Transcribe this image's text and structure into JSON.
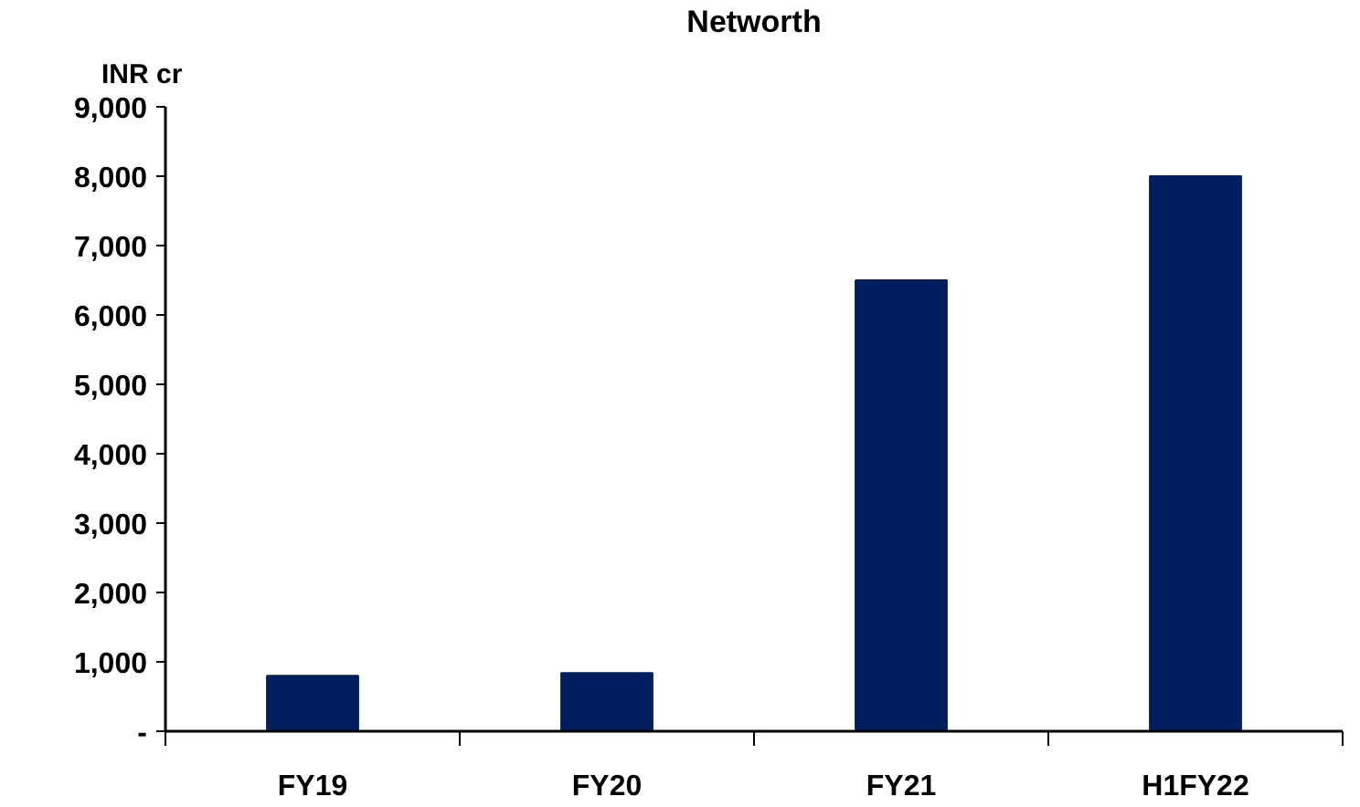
{
  "chart_data": {
    "type": "bar",
    "title": "Networth",
    "ylabel": "INR cr",
    "categories": [
      "FY19",
      "FY20",
      "FY21",
      "H1FY22"
    ],
    "values": [
      800,
      840,
      6500,
      8000
    ],
    "color": "#001f5f",
    "ylim": [
      0,
      9000
    ],
    "yticks": [
      {
        "value": 0,
        "label": "-"
      },
      {
        "value": 1000,
        "label": "1,000"
      },
      {
        "value": 2000,
        "label": "2,000"
      },
      {
        "value": 3000,
        "label": "3,000"
      },
      {
        "value": 4000,
        "label": "4,000"
      },
      {
        "value": 5000,
        "label": "5,000"
      },
      {
        "value": 6000,
        "label": "6,000"
      },
      {
        "value": 7000,
        "label": "7,000"
      },
      {
        "value": 8000,
        "label": "8,000"
      },
      {
        "value": 9000,
        "label": "9,000"
      }
    ],
    "grid": false
  }
}
